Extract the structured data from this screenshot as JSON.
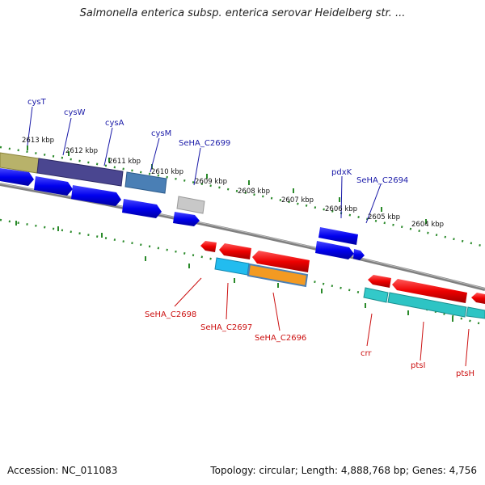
{
  "title": "Salmonella enterica subsp. enterica serovar Heidelberg str. ...",
  "footer": {
    "accession": "Accession: NC_011083",
    "summary": "Topology: circular; Length: 4,888,768 bp; Genes: 4,756"
  },
  "ticks": [
    {
      "label": "2613 kbp"
    },
    {
      "label": "2612 kbp"
    },
    {
      "label": "2611 kbp"
    },
    {
      "label": "2610 kbp"
    },
    {
      "label": "2609 kbp"
    },
    {
      "label": "2608 kbp"
    },
    {
      "label": "2607 kbp"
    },
    {
      "label": "2606 kbp"
    },
    {
      "label": "2605 kbp"
    },
    {
      "label": "2604 kbp"
    }
  ],
  "top_labels": [
    {
      "label": "cysT"
    },
    {
      "label": "cysW"
    },
    {
      "label": "cysA"
    },
    {
      "label": "cysM"
    },
    {
      "label": "SeHA_C2699"
    },
    {
      "label": "pdxK"
    },
    {
      "label": "SeHA_C2694"
    }
  ],
  "bottom_labels": [
    {
      "label": "SeHA_C2698"
    },
    {
      "label": "SeHA_C2697"
    },
    {
      "label": "SeHA_C2696"
    },
    {
      "label": "crr"
    },
    {
      "label": "ptsI"
    },
    {
      "label": "ptsH"
    }
  ],
  "colors": {
    "forward_label": "#1a1aa8",
    "reverse_label": "#cc1111",
    "backbone": "#808080",
    "tick_green": "#2a8a2a"
  }
}
